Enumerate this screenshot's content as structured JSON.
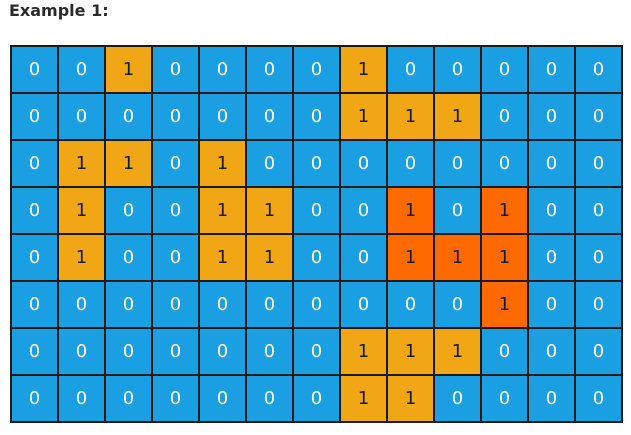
{
  "heading": "Example 1:",
  "colors": {
    "water": "#1a9fe2",
    "land": "#f0a615",
    "highlight": "#ff6a00"
  },
  "grid": [
    [
      0,
      0,
      1,
      0,
      0,
      0,
      0,
      1,
      0,
      0,
      0,
      0,
      0
    ],
    [
      0,
      0,
      0,
      0,
      0,
      0,
      0,
      1,
      1,
      1,
      0,
      0,
      0
    ],
    [
      0,
      1,
      1,
      0,
      1,
      0,
      0,
      0,
      0,
      0,
      0,
      0,
      0
    ],
    [
      0,
      1,
      0,
      0,
      1,
      1,
      0,
      0,
      1,
      0,
      1,
      0,
      0
    ],
    [
      0,
      1,
      0,
      0,
      1,
      1,
      0,
      0,
      1,
      1,
      1,
      0,
      0
    ],
    [
      0,
      0,
      0,
      0,
      0,
      0,
      0,
      0,
      0,
      0,
      1,
      0,
      0
    ],
    [
      0,
      0,
      0,
      0,
      0,
      0,
      0,
      1,
      1,
      1,
      0,
      0,
      0
    ],
    [
      0,
      0,
      0,
      0,
      0,
      0,
      0,
      1,
      1,
      0,
      0,
      0,
      0
    ]
  ],
  "highlighted_cells": [
    [
      3,
      8
    ],
    [
      3,
      10
    ],
    [
      4,
      8
    ],
    [
      4,
      9
    ],
    [
      4,
      10
    ],
    [
      5,
      10
    ]
  ]
}
